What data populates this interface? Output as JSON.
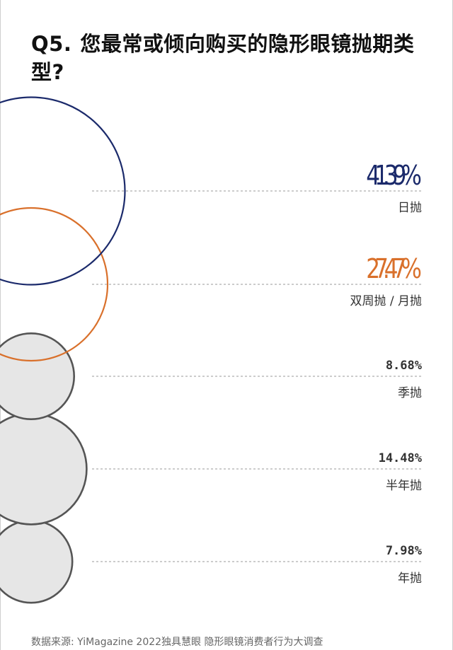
{
  "title": {
    "number": "Q5.",
    "text": "您最常或倾向购买的隐形眼镜抛期类型?"
  },
  "source": "数据来源: YiMagazine 2022独具慧眼 隐形眼镜消费者行为大调查",
  "colors": {
    "navy": "#1b2a6b",
    "orange": "#d9702b",
    "gray_stroke": "#555555",
    "gray_fill": "#e6e6e6",
    "label": "#333333",
    "dashed": "#999999"
  },
  "chart_data": {
    "type": "bubble",
    "categories": [
      "日抛",
      "双周抛 / 月抛",
      "季抛",
      "半年抛",
      "年抛"
    ],
    "values": [
      41.39,
      27.47,
      8.68,
      14.48,
      7.98
    ],
    "value_labels": [
      "41.39%",
      "27.47%",
      "8.68%",
      "14.48%",
      "7.98%"
    ],
    "unit": "%",
    "highlight": [
      true,
      true,
      false,
      false,
      false
    ],
    "series_colors": [
      "#1b2a6b",
      "#d9702b",
      "#555555",
      "#555555",
      "#555555"
    ]
  }
}
